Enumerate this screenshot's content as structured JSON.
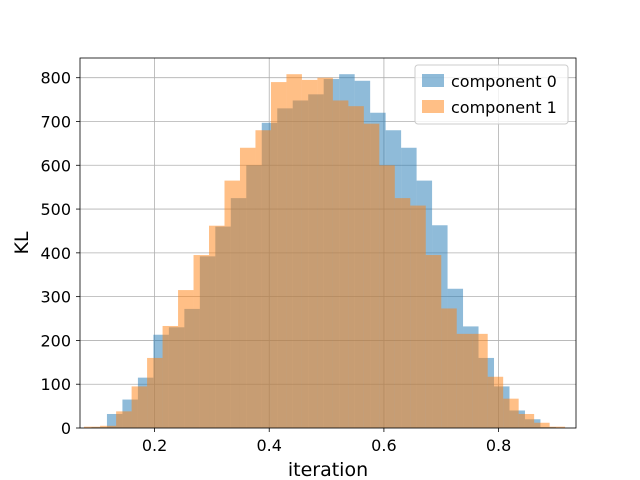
{
  "chart_data": {
    "type": "bar",
    "title": "",
    "xlabel": "iteration",
    "ylabel": "KL",
    "xlim": [
      0.07,
      0.935
    ],
    "ylim": [
      0,
      845
    ],
    "xticks": [
      0.2,
      0.4,
      0.6,
      0.8
    ],
    "xtick_labels": [
      "0.2",
      "0.4",
      "0.6",
      "0.8"
    ],
    "yticks": [
      0,
      100,
      200,
      300,
      400,
      500,
      600,
      700,
      800
    ],
    "ytick_labels": [
      "0",
      "100",
      "200",
      "300",
      "400",
      "500",
      "600",
      "700",
      "800"
    ],
    "grid": true,
    "legend": "top-right",
    "series": [
      {
        "name": "component 0",
        "color": "#1f77b4",
        "opacity": 0.5,
        "bins": [
          [
            0.09,
            0.117,
            2
          ],
          [
            0.117,
            0.144,
            32
          ],
          [
            0.144,
            0.171,
            65
          ],
          [
            0.171,
            0.198,
            115
          ],
          [
            0.198,
            0.225,
            213
          ],
          [
            0.225,
            0.252,
            230
          ],
          [
            0.252,
            0.279,
            272
          ],
          [
            0.279,
            0.306,
            392
          ],
          [
            0.306,
            0.333,
            460
          ],
          [
            0.333,
            0.36,
            525
          ],
          [
            0.36,
            0.387,
            600
          ],
          [
            0.387,
            0.414,
            697
          ],
          [
            0.414,
            0.441,
            730
          ],
          [
            0.441,
            0.468,
            748
          ],
          [
            0.468,
            0.495,
            762
          ],
          [
            0.495,
            0.522,
            797
          ],
          [
            0.522,
            0.549,
            808
          ],
          [
            0.549,
            0.576,
            793
          ],
          [
            0.576,
            0.603,
            720
          ],
          [
            0.603,
            0.63,
            680
          ],
          [
            0.63,
            0.657,
            640
          ],
          [
            0.657,
            0.684,
            565
          ],
          [
            0.684,
            0.711,
            463
          ],
          [
            0.711,
            0.738,
            318
          ],
          [
            0.738,
            0.765,
            232
          ],
          [
            0.765,
            0.792,
            160
          ],
          [
            0.792,
            0.819,
            95
          ],
          [
            0.819,
            0.846,
            40
          ],
          [
            0.846,
            0.873,
            20
          ],
          [
            0.873,
            0.9,
            2
          ]
        ]
      },
      {
        "name": "component 1",
        "color": "#ff7f0e",
        "opacity": 0.5,
        "bins": [
          [
            0.077,
            0.105,
            3
          ],
          [
            0.105,
            0.133,
            5
          ],
          [
            0.133,
            0.16,
            38
          ],
          [
            0.16,
            0.187,
            95
          ],
          [
            0.187,
            0.214,
            160
          ],
          [
            0.214,
            0.241,
            233
          ],
          [
            0.241,
            0.268,
            315
          ],
          [
            0.268,
            0.295,
            395
          ],
          [
            0.295,
            0.322,
            462
          ],
          [
            0.322,
            0.349,
            565
          ],
          [
            0.349,
            0.376,
            640
          ],
          [
            0.376,
            0.403,
            680
          ],
          [
            0.403,
            0.43,
            790
          ],
          [
            0.43,
            0.457,
            808
          ],
          [
            0.457,
            0.484,
            795
          ],
          [
            0.484,
            0.511,
            800
          ],
          [
            0.511,
            0.538,
            748
          ],
          [
            0.538,
            0.565,
            735
          ],
          [
            0.565,
            0.592,
            695
          ],
          [
            0.592,
            0.619,
            600
          ],
          [
            0.619,
            0.646,
            525
          ],
          [
            0.646,
            0.673,
            508
          ],
          [
            0.673,
            0.7,
            395
          ],
          [
            0.7,
            0.727,
            273
          ],
          [
            0.727,
            0.754,
            215
          ],
          [
            0.754,
            0.781,
            215
          ],
          [
            0.781,
            0.808,
            117
          ],
          [
            0.808,
            0.835,
            67
          ],
          [
            0.835,
            0.862,
            32
          ],
          [
            0.862,
            0.889,
            12
          ],
          [
            0.889,
            0.916,
            3
          ]
        ]
      }
    ]
  }
}
